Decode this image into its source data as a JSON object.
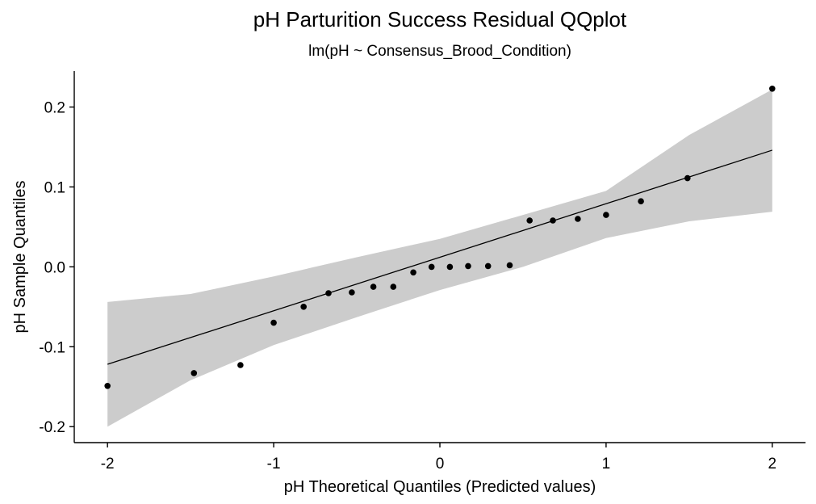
{
  "chart_data": {
    "type": "scatter",
    "title": "pH Parturition Success Residual QQplot",
    "subtitle": "lm(pH ~ Consensus_Brood_Condition)",
    "xlabel": "pH Theoretical Quantiles (Predicted values)",
    "ylabel": "pH Sample Quantiles",
    "xlim": [
      -2.2,
      2.2
    ],
    "ylim": [
      -0.22,
      0.245
    ],
    "x_ticks": [
      -2,
      -1,
      0,
      1,
      2
    ],
    "x_tick_labels": [
      "-2",
      "-1",
      "0",
      "1",
      "2"
    ],
    "y_ticks": [
      -0.2,
      -0.1,
      0.0,
      0.1,
      0.2
    ],
    "y_tick_labels": [
      "-0.2",
      "-0.1",
      "0.0",
      "0.1",
      "0.2"
    ],
    "grid": false,
    "points": {
      "x": [
        -2.0,
        -1.48,
        -1.2,
        -1.0,
        -0.82,
        -0.67,
        -0.53,
        -0.4,
        -0.28,
        -0.16,
        -0.05,
        0.06,
        0.17,
        0.29,
        0.42,
        0.54,
        0.68,
        0.83,
        1.0,
        1.21,
        1.49,
        2.0
      ],
      "y": [
        -0.149,
        -0.133,
        -0.123,
        -0.07,
        -0.05,
        -0.033,
        -0.032,
        -0.025,
        -0.025,
        -0.007,
        0.0,
        0.0,
        0.001,
        0.001,
        0.002,
        0.058,
        0.058,
        0.06,
        0.065,
        0.082,
        0.111,
        0.223
      ]
    },
    "reference_line": {
      "x": [
        -2.0,
        2.0
      ],
      "y": [
        -0.122,
        0.146
      ]
    },
    "confidence_band": {
      "x": [
        -2.0,
        -1.5,
        -1.0,
        -0.5,
        0.0,
        0.5,
        1.0,
        1.5,
        2.0
      ],
      "lower": [
        -0.2,
        -0.142,
        -0.098,
        -0.063,
        -0.029,
        0.0,
        0.036,
        0.057,
        0.069
      ],
      "upper": [
        -0.044,
        -0.034,
        -0.012,
        0.012,
        0.035,
        0.065,
        0.095,
        0.165,
        0.222
      ]
    },
    "colors": {
      "points": "#000000",
      "line": "#000000",
      "band": "#cccccc",
      "axes": "#000000"
    }
  }
}
